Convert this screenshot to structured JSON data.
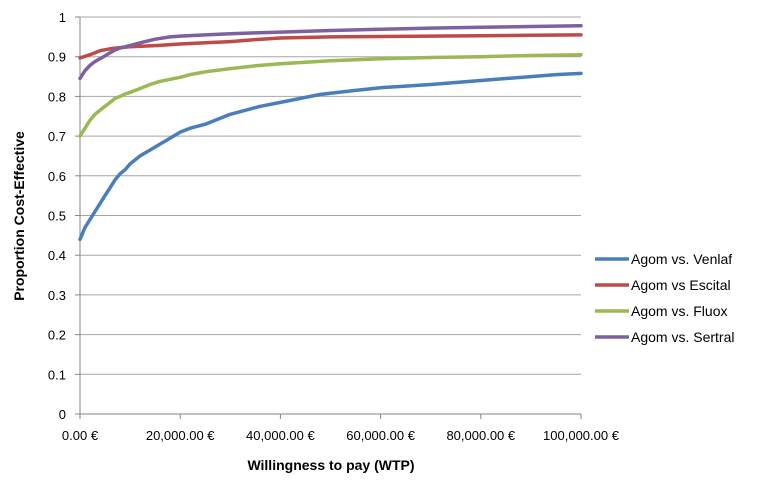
{
  "chart_data": {
    "type": "line",
    "xlabel": "Willingness to pay (WTP)",
    "ylabel": "Proportion Cost-Effective",
    "xlim": [
      0,
      100000
    ],
    "ylim": [
      0,
      1
    ],
    "x_ticks": [
      0,
      20000,
      40000,
      60000,
      80000,
      100000
    ],
    "x_tick_labels": [
      "0.00 €",
      "20,000.00 €",
      "40,000.00 €",
      "60,000.00 €",
      "80,000.00 €",
      "100,000.00 €"
    ],
    "y_ticks": [
      0,
      0.1,
      0.2,
      0.3,
      0.4,
      0.5,
      0.6,
      0.7,
      0.8,
      0.9,
      1
    ],
    "y_tick_labels": [
      "0",
      "0.1",
      "0.2",
      "0.3",
      "0.4",
      "0.5",
      "0.6",
      "0.7",
      "0.8",
      "0.9",
      "1"
    ],
    "grid": "horizontal",
    "legend_position": "right",
    "series": [
      {
        "name": "Agom vs. Venlaf",
        "color": "#4a7ebb",
        "x": [
          0,
          1000,
          2000,
          3000,
          4000,
          5000,
          6000,
          7000,
          8000,
          9000,
          10000,
          12000,
          14000,
          16000,
          18000,
          20000,
          22000,
          25000,
          28000,
          30000,
          33000,
          36000,
          40000,
          44000,
          48000,
          50000,
          55000,
          60000,
          65000,
          70000,
          75000,
          80000,
          85000,
          90000,
          95000,
          100000
        ],
        "values": [
          0.44,
          0.47,
          0.49,
          0.51,
          0.53,
          0.55,
          0.57,
          0.59,
          0.605,
          0.615,
          0.63,
          0.65,
          0.665,
          0.68,
          0.695,
          0.71,
          0.72,
          0.73,
          0.745,
          0.755,
          0.765,
          0.775,
          0.785,
          0.795,
          0.805,
          0.808,
          0.815,
          0.822,
          0.826,
          0.83,
          0.835,
          0.84,
          0.845,
          0.85,
          0.855,
          0.858
        ]
      },
      {
        "name": "Agom vs Escital",
        "color": "#be4b48",
        "x": [
          0,
          2000,
          4000,
          6000,
          8000,
          10000,
          15000,
          20000,
          25000,
          30000,
          35000,
          40000,
          50000,
          60000,
          70000,
          80000,
          90000,
          100000
        ],
        "values": [
          0.897,
          0.905,
          0.915,
          0.92,
          0.923,
          0.925,
          0.928,
          0.932,
          0.935,
          0.938,
          0.943,
          0.947,
          0.95,
          0.951,
          0.952,
          0.953,
          0.954,
          0.955
        ]
      },
      {
        "name": "Agom vs. Fluox",
        "color": "#98b954",
        "x": [
          0,
          1000,
          2000,
          3000,
          4000,
          5000,
          6000,
          7000,
          8000,
          9000,
          10000,
          12000,
          14000,
          16000,
          18000,
          20000,
          22000,
          25000,
          30000,
          35000,
          40000,
          45000,
          50000,
          60000,
          70000,
          80000,
          90000,
          100000
        ],
        "values": [
          0.7,
          0.72,
          0.74,
          0.755,
          0.765,
          0.775,
          0.785,
          0.795,
          0.8,
          0.806,
          0.81,
          0.82,
          0.83,
          0.838,
          0.843,
          0.848,
          0.855,
          0.862,
          0.87,
          0.877,
          0.882,
          0.886,
          0.89,
          0.895,
          0.898,
          0.9,
          0.903,
          0.905
        ]
      },
      {
        "name": "Agom vs. Sertral",
        "color": "#7d60a0",
        "x": [
          0,
          1000,
          2000,
          3000,
          4000,
          5000,
          6000,
          7000,
          8000,
          10000,
          12000,
          15000,
          18000,
          20000,
          25000,
          30000,
          35000,
          40000,
          50000,
          60000,
          70000,
          80000,
          90000,
          100000
        ],
        "values": [
          0.845,
          0.865,
          0.878,
          0.888,
          0.895,
          0.902,
          0.91,
          0.917,
          0.922,
          0.928,
          0.935,
          0.944,
          0.95,
          0.952,
          0.955,
          0.958,
          0.96,
          0.962,
          0.966,
          0.969,
          0.972,
          0.974,
          0.976,
          0.978
        ]
      }
    ]
  }
}
